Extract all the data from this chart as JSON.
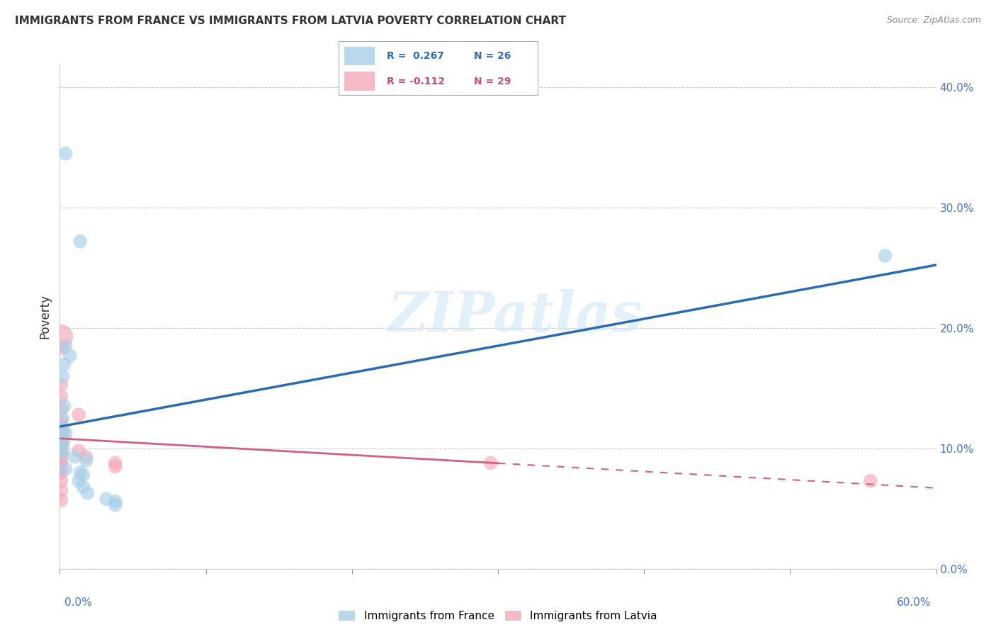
{
  "title": "IMMIGRANTS FROM FRANCE VS IMMIGRANTS FROM LATVIA POVERTY CORRELATION CHART",
  "source": "Source: ZipAtlas.com",
  "ylabel": "Poverty",
  "xlim": [
    0.0,
    0.6
  ],
  "ylim": [
    0.0,
    0.42
  ],
  "xticks": [
    0.0,
    0.1,
    0.2,
    0.3,
    0.4,
    0.5,
    0.6
  ],
  "yticks": [
    0.0,
    0.1,
    0.2,
    0.3,
    0.4
  ],
  "xtick_labels_outer": [
    "0.0%",
    "60.0%"
  ],
  "ytick_labels_right": [
    "0.0%",
    "10.0%",
    "20.0%",
    "30.0%",
    "40.0%"
  ],
  "france_color": "#a8cfe8",
  "france_line_color": "#2b6cb0",
  "latvia_color": "#f4a8b8",
  "latvia_line_color": "#d06080",
  "france_label": "Immigrants from France",
  "latvia_label": "Immigrants from Latvia",
  "legend_R_france": "R = 0.267",
  "legend_N_france": "N = 26",
  "legend_R_latvia": "R = -0.112",
  "legend_N_latvia": "N = 29",
  "watermark": "ZIPatlas",
  "france_points": [
    [
      0.004,
      0.345
    ],
    [
      0.014,
      0.272
    ],
    [
      0.004,
      0.185
    ],
    [
      0.007,
      0.177
    ],
    [
      0.003,
      0.17
    ],
    [
      0.002,
      0.16
    ],
    [
      0.003,
      0.135
    ],
    [
      0.002,
      0.125
    ],
    [
      0.003,
      0.115
    ],
    [
      0.004,
      0.112
    ],
    [
      0.003,
      0.108
    ],
    [
      0.002,
      0.103
    ],
    [
      0.001,
      0.1
    ],
    [
      0.002,
      0.097
    ],
    [
      0.01,
      0.093
    ],
    [
      0.018,
      0.09
    ],
    [
      0.004,
      0.083
    ],
    [
      0.014,
      0.08
    ],
    [
      0.016,
      0.078
    ],
    [
      0.013,
      0.073
    ],
    [
      0.016,
      0.068
    ],
    [
      0.019,
      0.063
    ],
    [
      0.032,
      0.058
    ],
    [
      0.038,
      0.056
    ],
    [
      0.038,
      0.053
    ],
    [
      0.565,
      0.26
    ]
  ],
  "latvia_points": [
    [
      0.001,
      0.193
    ],
    [
      0.001,
      0.183
    ],
    [
      0.001,
      0.153
    ],
    [
      0.001,
      0.143
    ],
    [
      0.001,
      0.133
    ],
    [
      0.001,
      0.123
    ],
    [
      0.001,
      0.12
    ],
    [
      0.001,
      0.117
    ],
    [
      0.001,
      0.113
    ],
    [
      0.001,
      0.11
    ],
    [
      0.001,
      0.105
    ],
    [
      0.001,
      0.102
    ],
    [
      0.001,
      0.1
    ],
    [
      0.001,
      0.097
    ],
    [
      0.001,
      0.093
    ],
    [
      0.001,
      0.09
    ],
    [
      0.001,
      0.087
    ],
    [
      0.001,
      0.083
    ],
    [
      0.001,
      0.08
    ],
    [
      0.001,
      0.073
    ],
    [
      0.001,
      0.065
    ],
    [
      0.001,
      0.057
    ],
    [
      0.013,
      0.128
    ],
    [
      0.013,
      0.098
    ],
    [
      0.018,
      0.093
    ],
    [
      0.038,
      0.088
    ],
    [
      0.038,
      0.085
    ],
    [
      0.295,
      0.088
    ],
    [
      0.555,
      0.073
    ]
  ],
  "france_sizes": [
    200,
    200,
    200,
    200,
    200,
    200,
    200,
    200,
    200,
    200,
    200,
    200,
    200,
    200,
    200,
    200,
    200,
    200,
    200,
    200,
    200,
    200,
    200,
    200,
    200,
    200
  ],
  "latvia_sizes": [
    600,
    200,
    200,
    200,
    200,
    200,
    200,
    200,
    200,
    200,
    200,
    200,
    200,
    200,
    200,
    200,
    200,
    200,
    200,
    200,
    200,
    200,
    200,
    200,
    200,
    200,
    200,
    200,
    200
  ]
}
